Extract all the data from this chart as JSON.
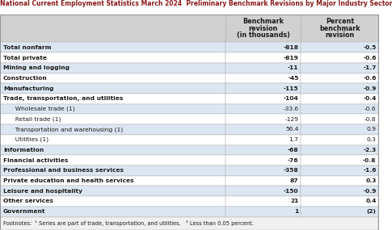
{
  "title": "National Current Employment Statistics March 2024  Preliminary Benchmark Revisions by Major Industry Sector",
  "col1_header": "Benchmark\nrevision\n(in thousands)",
  "col2_header": "Percent\nbenchmark\nrevision",
  "rows": [
    {
      "label": "Total nonfarm",
      "indent": 0,
      "bold": true,
      "val1": "-818",
      "val2": "-0.5",
      "bg": "light"
    },
    {
      "label": "Total private",
      "indent": 0,
      "bold": true,
      "val1": "-819",
      "val2": "-0.6",
      "bg": "white"
    },
    {
      "label": "Mining and logging",
      "indent": 0,
      "bold": true,
      "val1": "-11",
      "val2": "-1.7",
      "bg": "light"
    },
    {
      "label": "Construction",
      "indent": 0,
      "bold": true,
      "val1": "-45",
      "val2": "-0.6",
      "bg": "white"
    },
    {
      "label": "Manufacturing",
      "indent": 0,
      "bold": true,
      "val1": "-115",
      "val2": "-0.9",
      "bg": "light"
    },
    {
      "label": "Trade, transportation, and utilities",
      "indent": 0,
      "bold": true,
      "val1": "-104",
      "val2": "-0.4",
      "bg": "white"
    },
    {
      "label": "  Wholesale trade (1)",
      "indent": 1,
      "bold": false,
      "val1": "-33.6",
      "val2": "-0.6",
      "bg": "light"
    },
    {
      "label": "  Retail trade (1)",
      "indent": 1,
      "bold": false,
      "val1": "-129",
      "val2": "-0.8",
      "bg": "white"
    },
    {
      "label": "  Transportation and warehousing (1)",
      "indent": 1,
      "bold": false,
      "val1": "56.4",
      "val2": "0.9",
      "bg": "light"
    },
    {
      "label": "  Utilities (1)",
      "indent": 1,
      "bold": false,
      "val1": "1.7",
      "val2": "0.3",
      "bg": "white"
    },
    {
      "label": "Information",
      "indent": 0,
      "bold": true,
      "val1": "-68",
      "val2": "-2.3",
      "bg": "light"
    },
    {
      "label": "Financial activities",
      "indent": 0,
      "bold": true,
      "val1": "-76",
      "val2": "-0.8",
      "bg": "white"
    },
    {
      "label": "Professional and business services",
      "indent": 0,
      "bold": true,
      "val1": "-358",
      "val2": "-1.6",
      "bg": "light"
    },
    {
      "label": "Private education and health services",
      "indent": 0,
      "bold": true,
      "val1": "87",
      "val2": "0.3",
      "bg": "white"
    },
    {
      "label": "Leisure and hospitality",
      "indent": 0,
      "bold": true,
      "val1": "-150",
      "val2": "-0.9",
      "bg": "light"
    },
    {
      "label": "Other services",
      "indent": 0,
      "bold": true,
      "val1": "21",
      "val2": "0.4",
      "bg": "white"
    },
    {
      "label": "Government",
      "indent": 0,
      "bold": true,
      "val1": "1",
      "val2": "(2)",
      "bg": "light"
    }
  ],
  "footnote": "Footnotes:  ¹ Series are part of trade, transportation, and utilities.   ² Less than 0.05 percent.",
  "title_color": "#8B1A1A",
  "light_bg": "#dce6f1",
  "white_bg": "#ffffff",
  "header_bg": "#d0d0d0",
  "footnote_bg": "#f0f0f0",
  "border_color": "#aaaaaa"
}
